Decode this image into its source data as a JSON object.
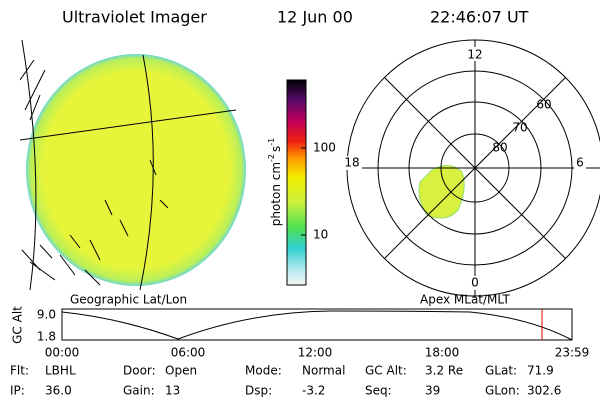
{
  "header": {
    "title": "Ultraviolet Imager",
    "date": "12 Jun 00",
    "time": "22:46:07 UT"
  },
  "colorbar": {
    "unit": "photon cm",
    "exp1": "-2",
    "unit2": "s",
    "exp2": "-1",
    "ticks": [
      "100",
      "10"
    ]
  },
  "polar": {
    "mlt_labels": [
      "12",
      "18",
      "6",
      "0"
    ],
    "lat_labels": [
      "60",
      "70",
      "80"
    ]
  },
  "panel_labels": {
    "left": "Geographic Lat/Lon",
    "right": "Apex MLat/MLT"
  },
  "timeline": {
    "axis_label": "GC Alt",
    "y_labels": [
      "9.0",
      "1.8"
    ],
    "x_labels": [
      "00:00",
      "06:00",
      "12:00",
      "18:00",
      "23:59"
    ]
  },
  "info": {
    "rows": [
      [
        [
          "Flt:",
          "LBHL"
        ],
        [
          "Door:",
          "Open"
        ],
        [
          "Mode:",
          "Normal"
        ],
        [
          "GC Alt:",
          "3.2 Re"
        ],
        [
          "GLat:",
          "71.9"
        ]
      ],
      [
        [
          "IP:",
          "36.0"
        ],
        [
          "Gain:",
          "13"
        ],
        [
          "Dsp:",
          "-3.2"
        ],
        [
          "Seq:",
          "39"
        ],
        [
          "GLon:",
          "302.6"
        ]
      ]
    ]
  }
}
